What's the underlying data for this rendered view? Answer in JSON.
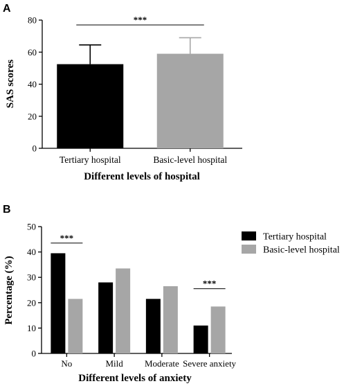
{
  "colors": {
    "series_1": "#000000",
    "series_2": "#a6a6a6",
    "axis": "#000000"
  },
  "chart_data": [
    {
      "panel": "A",
      "type": "bar",
      "categories": [
        "Tertiary hospital",
        "Basic-level hospital"
      ],
      "values": [
        52.5,
        59.0
      ],
      "error_bars": [
        12.0,
        10.0
      ],
      "bar_colors": [
        "#000000",
        "#a6a6a6"
      ],
      "xlabel": "Different levels of hospital",
      "ylabel": "SAS scores",
      "ylim": [
        0,
        80
      ],
      "yticks": [
        0,
        20,
        40,
        60,
        80
      ],
      "significance": [
        {
          "label": "***",
          "from": 0,
          "to": 1,
          "y": 77
        }
      ],
      "grid": false
    },
    {
      "panel": "B",
      "type": "bar",
      "categories": [
        "No",
        "Mild",
        "Moderate",
        "Severe anxiety"
      ],
      "series": [
        {
          "name": "Tertiary hospital",
          "color": "#000000",
          "values": [
            39.5,
            28.0,
            21.5,
            11.0
          ]
        },
        {
          "name": "Basic-level hospital",
          "color": "#a6a6a6",
          "values": [
            21.5,
            33.5,
            26.5,
            18.5
          ]
        }
      ],
      "xlabel": "Different levels of anxiety",
      "ylabel": "Percentage (%)",
      "ylim": [
        0,
        50
      ],
      "yticks": [
        0,
        10,
        20,
        30,
        40,
        50
      ],
      "legend": "top-right",
      "significance": [
        {
          "label": "***",
          "category": 0,
          "y": 43.5
        },
        {
          "label": "***",
          "category": 3,
          "y": 25.5
        }
      ],
      "grid": false
    }
  ]
}
